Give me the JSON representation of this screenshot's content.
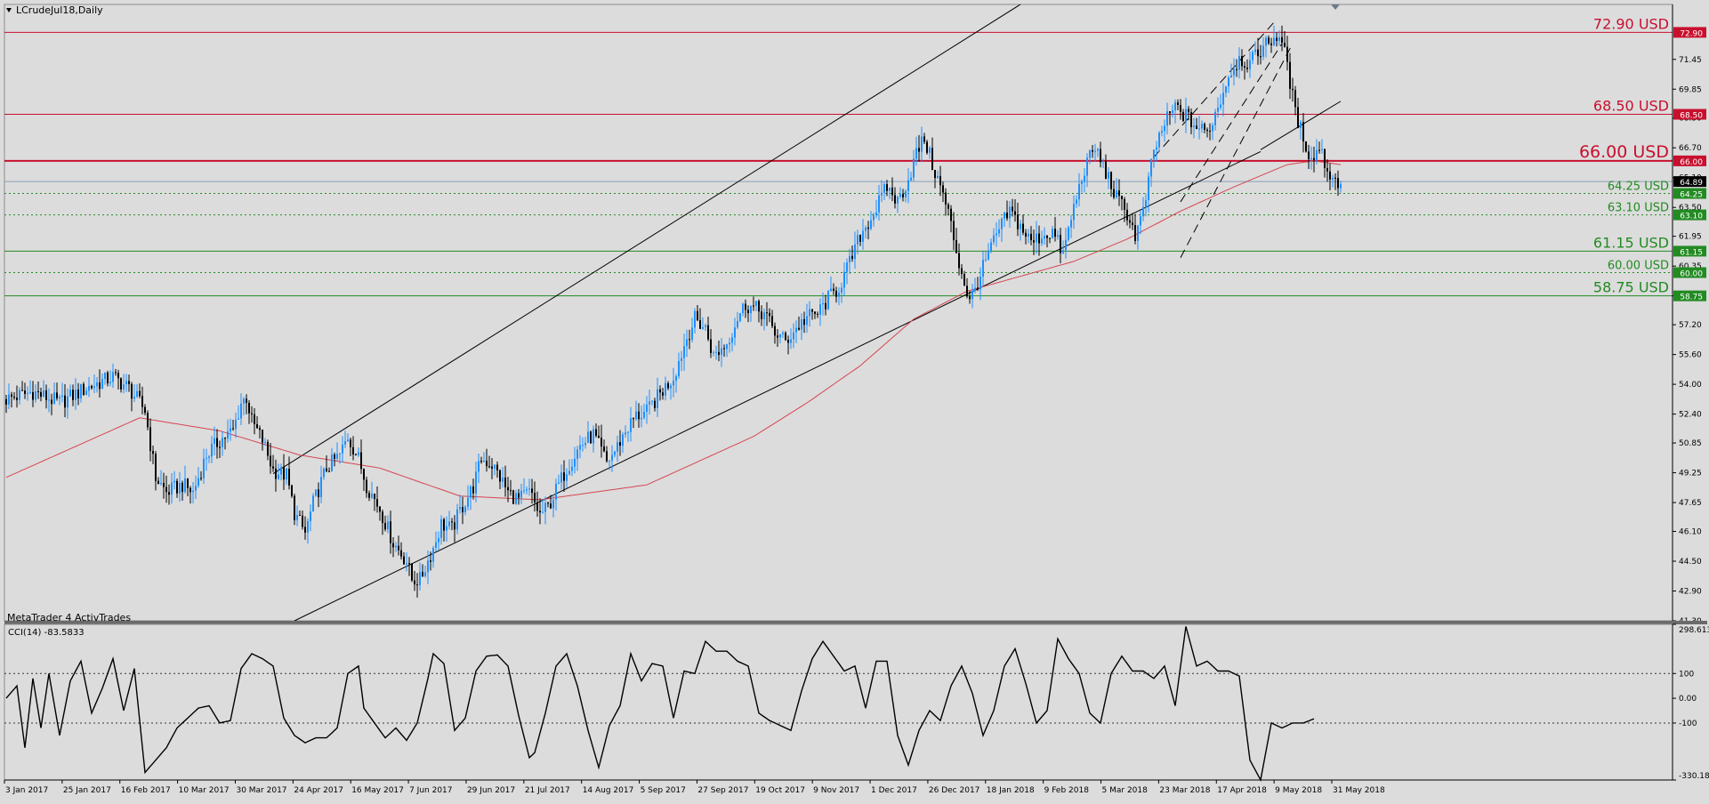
{
  "window": {
    "title": "LCrudeJul18,Daily",
    "watermark": "MetaTrader 4 ActivTrades",
    "indicator_label": "CCI(14) -83.5833"
  },
  "colors": {
    "background": "#dcdcdc",
    "bull_candle": "#1e90ff",
    "bear_candle": "#000000",
    "resistance": "#c8102e",
    "support": "#228b22",
    "ma": "#d64550",
    "cci_line": "#000000"
  },
  "chart_data": [
    {
      "type": "candlestick",
      "instrument": "LCrudeJul18",
      "timeframe": "Daily",
      "ylim": [
        41.3,
        74.4
      ],
      "y_ticks": [
        "71.45",
        "69.85",
        "68.30",
        "66.70",
        "65.10",
        "63.50",
        "61.95",
        "60.35",
        "58.75",
        "57.20",
        "55.60",
        "54.00",
        "52.40",
        "50.85",
        "49.25",
        "47.65",
        "46.10",
        "44.50",
        "42.90",
        "41.30"
      ],
      "x_ticks": [
        "3 Jan 2017",
        "25 Jan 2017",
        "16 Feb 2017",
        "10 Mar 2017",
        "30 Mar 2017",
        "24 Apr 2017",
        "16 May 2017",
        "7 Jun 2017",
        "29 Jun 2017",
        "21 Jul 2017",
        "14 Aug 2017",
        "5 Sep 2017",
        "27 Sep 2017",
        "19 Oct 2017",
        "9 Nov 2017",
        "1 Dec 2017",
        "26 Dec 2017",
        "18 Jan 2018",
        "9 Feb 2018",
        "5 Mar 2018",
        "23 Mar 2018",
        "17 Apr 2018",
        "9 May 2018",
        "31 May 2018"
      ],
      "price_path": [
        [
          0,
          53.2
        ],
        [
          10,
          53.6
        ],
        [
          20,
          53.0
        ],
        [
          30,
          53.8
        ],
        [
          40,
          54.4
        ],
        [
          46,
          53.8
        ],
        [
          52,
          52.6
        ],
        [
          56,
          49.0
        ],
        [
          60,
          48.2
        ],
        [
          66,
          48.6
        ],
        [
          70,
          48.2
        ],
        [
          75,
          50.2
        ],
        [
          80,
          51.0
        ],
        [
          85,
          51.5
        ],
        [
          88,
          53.0
        ],
        [
          90,
          53.3
        ],
        [
          92,
          52.0
        ],
        [
          96,
          51.0
        ],
        [
          100,
          49.4
        ],
        [
          105,
          49.1
        ],
        [
          108,
          47.1
        ],
        [
          112,
          46.0
        ],
        [
          115,
          47.6
        ],
        [
          120,
          49.5
        ],
        [
          125,
          50.2
        ],
        [
          128,
          51.2
        ],
        [
          132,
          50.0
        ],
        [
          135,
          48.6
        ],
        [
          140,
          47.3
        ],
        [
          145,
          45.5
        ],
        [
          150,
          44.5
        ],
        [
          152,
          43.5
        ],
        [
          155,
          43.5
        ],
        [
          160,
          45.2
        ],
        [
          163,
          46.5
        ],
        [
          167,
          46.2
        ],
        [
          170,
          47.2
        ],
        [
          175,
          48.5
        ],
        [
          178,
          50.0
        ],
        [
          182,
          49.7
        ],
        [
          185,
          49.0
        ],
        [
          188,
          48.2
        ],
        [
          192,
          47.8
        ],
        [
          196,
          48.2
        ],
        [
          200,
          47.0
        ],
        [
          203,
          47.4
        ],
        [
          206,
          48.3
        ],
        [
          210,
          49.5
        ],
        [
          215,
          50.7
        ],
        [
          220,
          51.3
        ],
        [
          225,
          49.8
        ],
        [
          228,
          50.4
        ],
        [
          232,
          51.5
        ],
        [
          236,
          52.3
        ],
        [
          240,
          52.5
        ],
        [
          245,
          53.5
        ],
        [
          250,
          54.4
        ],
        [
          255,
          56.5
        ],
        [
          258,
          57.5
        ],
        [
          262,
          57.0
        ],
        [
          265,
          55.5
        ],
        [
          270,
          56.2
        ],
        [
          274,
          57.6
        ],
        [
          277,
          58.3
        ],
        [
          280,
          58.1
        ],
        [
          284,
          57.8
        ],
        [
          288,
          56.8
        ],
        [
          292,
          56.3
        ],
        [
          296,
          57.0
        ],
        [
          300,
          57.6
        ],
        [
          304,
          57.8
        ],
        [
          308,
          58.6
        ],
        [
          312,
          59.2
        ],
        [
          316,
          60.5
        ],
        [
          320,
          62.0
        ],
        [
          325,
          63.2
        ],
        [
          330,
          64.6
        ],
        [
          334,
          63.8
        ],
        [
          338,
          65.0
        ],
        [
          341,
          66.4
        ],
        [
          344,
          67.2
        ],
        [
          347,
          65.8
        ],
        [
          350,
          64.6
        ],
        [
          353,
          63.2
        ],
        [
          357,
          60.5
        ],
        [
          361,
          58.4
        ],
        [
          364,
          59.5
        ],
        [
          368,
          61.0
        ],
        [
          372,
          62.3
        ],
        [
          376,
          63.3
        ],
        [
          380,
          62.5
        ],
        [
          384,
          61.6
        ],
        [
          388,
          62.0
        ],
        [
          392,
          62.2
        ],
        [
          396,
          61.0
        ],
        [
          400,
          63.5
        ],
        [
          404,
          65.6
        ],
        [
          408,
          66.7
        ],
        [
          412,
          65.4
        ],
        [
          416,
          64.0
        ],
        [
          420,
          63.2
        ],
        [
          423,
          62.0
        ],
        [
          426,
          63.2
        ],
        [
          430,
          66.5
        ],
        [
          434,
          68.0
        ],
        [
          438,
          68.9
        ],
        [
          442,
          68.4
        ],
        [
          446,
          67.8
        ],
        [
          450,
          67.5
        ],
        [
          454,
          68.9
        ],
        [
          458,
          70.6
        ],
        [
          462,
          71.5
        ],
        [
          466,
          71.2
        ],
        [
          470,
          72.0
        ],
        [
          474,
          72.5
        ],
        [
          477,
          72.8
        ],
        [
          480,
          71.2
        ],
        [
          483,
          68.5
        ],
        [
          486,
          67.3
        ],
        [
          489,
          66.0
        ],
        [
          492,
          66.8
        ],
        [
          495,
          65.5
        ],
        [
          498,
          64.9
        ],
        [
          500,
          64.9
        ]
      ],
      "ma_path": [
        [
          0,
          49.0
        ],
        [
          50,
          52.2
        ],
        [
          80,
          51.5
        ],
        [
          110,
          50.2
        ],
        [
          140,
          49.5
        ],
        [
          170,
          48.0
        ],
        [
          200,
          47.8
        ],
        [
          240,
          48.6
        ],
        [
          280,
          51.2
        ],
        [
          300,
          53.0
        ],
        [
          320,
          55.0
        ],
        [
          340,
          57.5
        ],
        [
          360,
          59.0
        ],
        [
          380,
          59.8
        ],
        [
          400,
          60.6
        ],
        [
          420,
          61.8
        ],
        [
          440,
          63.3
        ],
        [
          460,
          64.6
        ],
        [
          480,
          65.8
        ],
        [
          490,
          66.0
        ],
        [
          500,
          65.8
        ]
      ],
      "cci_path": [
        [
          0,
          0
        ],
        [
          4,
          50
        ],
        [
          7,
          -200
        ],
        [
          10,
          80
        ],
        [
          13,
          -120
        ],
        [
          16,
          100
        ],
        [
          20,
          -150
        ],
        [
          24,
          70
        ],
        [
          28,
          150
        ],
        [
          32,
          -60
        ],
        [
          36,
          40
        ],
        [
          40,
          160
        ],
        [
          44,
          -50
        ],
        [
          48,
          120
        ],
        [
          52,
          -300
        ],
        [
          56,
          -250
        ],
        [
          60,
          -200
        ],
        [
          64,
          -120
        ],
        [
          68,
          -80
        ],
        [
          72,
          -40
        ],
        [
          76,
          -30
        ],
        [
          80,
          -100
        ],
        [
          84,
          -90
        ],
        [
          88,
          120
        ],
        [
          92,
          180
        ],
        [
          96,
          160
        ],
        [
          100,
          130
        ],
        [
          104,
          -80
        ],
        [
          108,
          -150
        ],
        [
          112,
          -180
        ],
        [
          116,
          -160
        ],
        [
          120,
          -160
        ],
        [
          124,
          -120
        ],
        [
          128,
          100
        ],
        [
          132,
          130
        ],
        [
          134,
          -40
        ],
        [
          138,
          -100
        ],
        [
          142,
          -160
        ],
        [
          146,
          -120
        ],
        [
          150,
          -170
        ],
        [
          154,
          -100
        ],
        [
          158,
          80
        ],
        [
          160,
          180
        ],
        [
          164,
          140
        ],
        [
          168,
          -130
        ],
        [
          172,
          -80
        ],
        [
          176,
          110
        ],
        [
          180,
          170
        ],
        [
          184,
          175
        ],
        [
          188,
          130
        ],
        [
          192,
          -70
        ],
        [
          196,
          -240
        ],
        [
          198,
          -220
        ],
        [
          202,
          -60
        ],
        [
          206,
          130
        ],
        [
          210,
          180
        ],
        [
          214,
          50
        ],
        [
          218,
          -130
        ],
        [
          222,
          -280
        ],
        [
          226,
          -110
        ],
        [
          230,
          -30
        ],
        [
          234,
          180
        ],
        [
          238,
          70
        ],
        [
          242,
          140
        ],
        [
          246,
          130
        ],
        [
          250,
          -80
        ],
        [
          254,
          110
        ],
        [
          258,
          100
        ],
        [
          262,
          230
        ],
        [
          266,
          190
        ],
        [
          270,
          190
        ],
        [
          274,
          150
        ],
        [
          278,
          130
        ],
        [
          282,
          -60
        ],
        [
          286,
          -90
        ],
        [
          290,
          -110
        ],
        [
          294,
          -130
        ],
        [
          298,
          30
        ],
        [
          302,
          160
        ],
        [
          306,
          230
        ],
        [
          310,
          170
        ],
        [
          314,
          110
        ],
        [
          318,
          130
        ],
        [
          322,
          -40
        ],
        [
          326,
          150
        ],
        [
          330,
          150
        ],
        [
          334,
          -150
        ],
        [
          338,
          -270
        ],
        [
          342,
          -130
        ],
        [
          346,
          -50
        ],
        [
          350,
          -90
        ],
        [
          354,
          50
        ],
        [
          358,
          130
        ],
        [
          362,
          20
        ],
        [
          366,
          -150
        ],
        [
          370,
          -50
        ],
        [
          374,
          130
        ],
        [
          378,
          200
        ],
        [
          382,
          60
        ],
        [
          386,
          -100
        ],
        [
          390,
          -50
        ],
        [
          394,
          240
        ],
        [
          398,
          160
        ],
        [
          402,
          100
        ],
        [
          406,
          -60
        ],
        [
          410,
          -100
        ],
        [
          414,
          100
        ],
        [
          418,
          170
        ],
        [
          422,
          110
        ],
        [
          426,
          110
        ],
        [
          430,
          80
        ],
        [
          434,
          130
        ],
        [
          438,
          -30
        ],
        [
          442,
          290
        ],
        [
          446,
          130
        ],
        [
          450,
          150
        ],
        [
          454,
          110
        ],
        [
          458,
          110
        ],
        [
          462,
          90
        ],
        [
          466,
          -250
        ],
        [
          470,
          -330
        ],
        [
          474,
          -100
        ],
        [
          478,
          -120
        ],
        [
          482,
          -100
        ],
        [
          486,
          -100
        ],
        [
          490,
          -83
        ]
      ],
      "trendlines": {
        "channel_upper": [
          [
            100,
            49.2
          ],
          [
            380,
            74.4
          ]
        ],
        "channel_lower": [
          [
            108,
            41.3
          ],
          [
            470,
            66.5
          ]
        ],
        "extension": [
          [
            470,
            66.6
          ],
          [
            500,
            69.2
          ]
        ],
        "wedge_a": [
          [
            430,
            66.2
          ],
          [
            476,
            73.6
          ]
        ],
        "wedge_b": [
          [
            440,
            63.8
          ],
          [
            478,
            72.3
          ]
        ],
        "wedge_c": [
          [
            440,
            60.8
          ],
          [
            482,
            72.3
          ]
        ]
      },
      "levels": [
        {
          "label": "72.90 USD",
          "price": 72.9,
          "tag": "72.90",
          "style": "resistance"
        },
        {
          "label": "68.50 USD",
          "price": 68.5,
          "tag": "68.50",
          "style": "resistance"
        },
        {
          "label": "66.00 USD",
          "price": 66.0,
          "tag": "66.00",
          "style": "resistance-strong"
        },
        {
          "label": "64.25 USD",
          "price": 64.25,
          "tag": "64.25",
          "style": "support-dotted"
        },
        {
          "label": "63.10 USD",
          "price": 63.1,
          "tag": "63.10",
          "style": "support-dotted"
        },
        {
          "label": "61.15 USD",
          "price": 61.15,
          "tag": "61.15",
          "style": "support"
        },
        {
          "label": "60.00 USD",
          "price": 60.0,
          "tag": "60.00",
          "style": "support-dotted"
        },
        {
          "label": "58.75 USD",
          "price": 58.75,
          "tag": "58.75",
          "style": "support"
        }
      ],
      "current_price": {
        "price": 64.89,
        "tag": "64.89"
      }
    },
    {
      "type": "line",
      "indicator": "CCI(14)",
      "current_value": -83.5833,
      "ylim": [
        -330.181,
        298.6136
      ],
      "y_ticks": [
        "298.6136",
        "100",
        "0.00",
        "-100",
        "-330.181"
      ],
      "levels": [
        100,
        -100
      ]
    }
  ]
}
